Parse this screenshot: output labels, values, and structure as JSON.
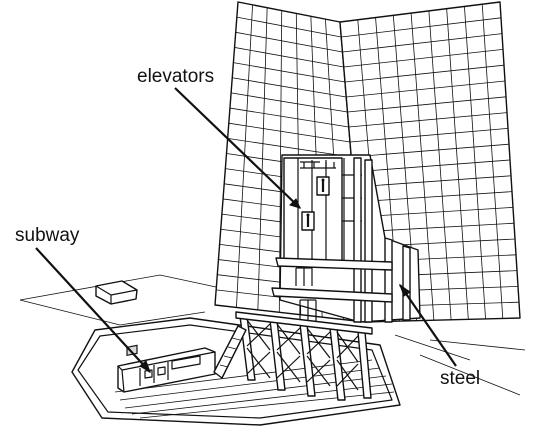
{
  "labels": {
    "elevators": "elevators",
    "subway": "subway",
    "steel": "steel"
  },
  "colors": {
    "line": "#111111",
    "background": "#ffffff",
    "shade": "#d9d9d9"
  }
}
